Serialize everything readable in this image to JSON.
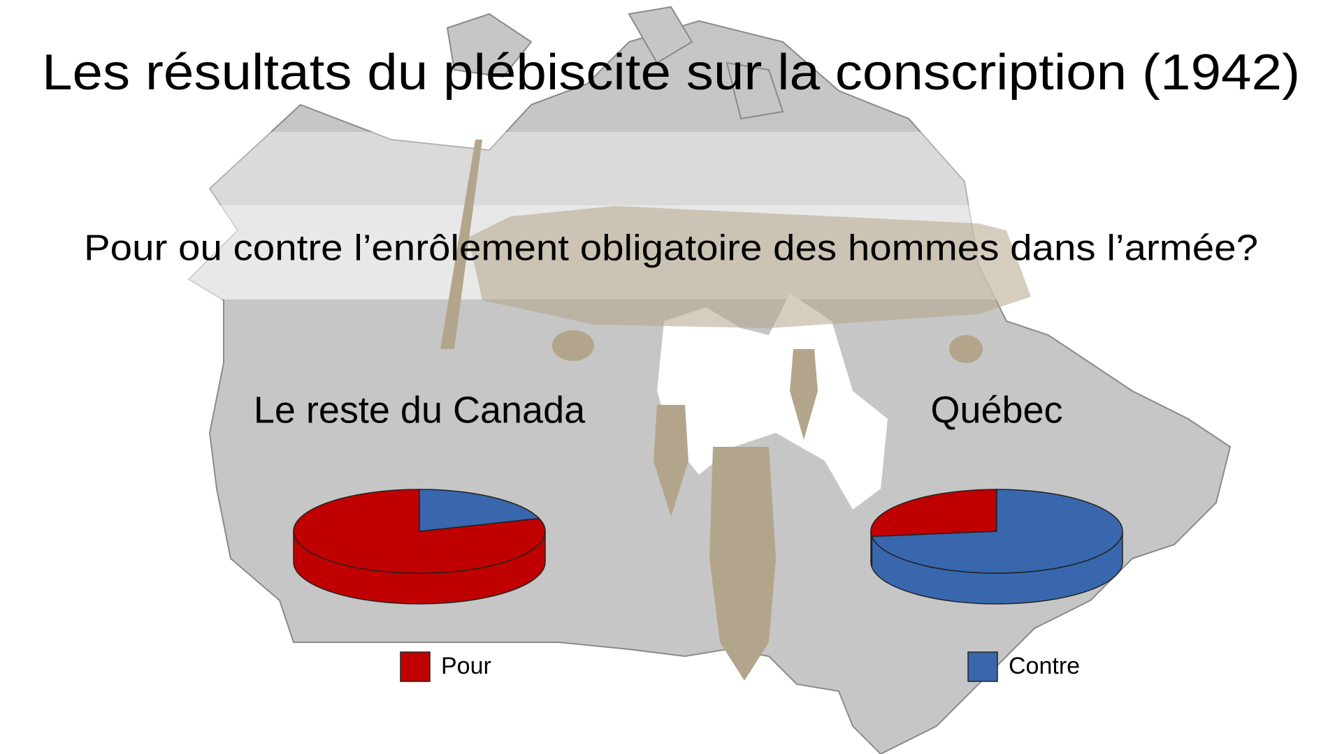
{
  "title": "Les résultats du plébiscite sur la conscription (1942)",
  "subtitle": "Pour ou contre l’enrôlement obligatoire des hommes dans l’armée?",
  "chart_data": [
    {
      "type": "pie",
      "title": "Le reste du Canada",
      "categories": [
        "Pour",
        "Contre"
      ],
      "values": [
        80,
        20
      ],
      "colors": [
        "#c00000",
        "#3867ad"
      ]
    },
    {
      "type": "pie",
      "title": "Québec",
      "categories": [
        "Pour",
        "Contre"
      ],
      "values": [
        27,
        73
      ],
      "colors": [
        "#c00000",
        "#3867ad"
      ]
    }
  ]
}
